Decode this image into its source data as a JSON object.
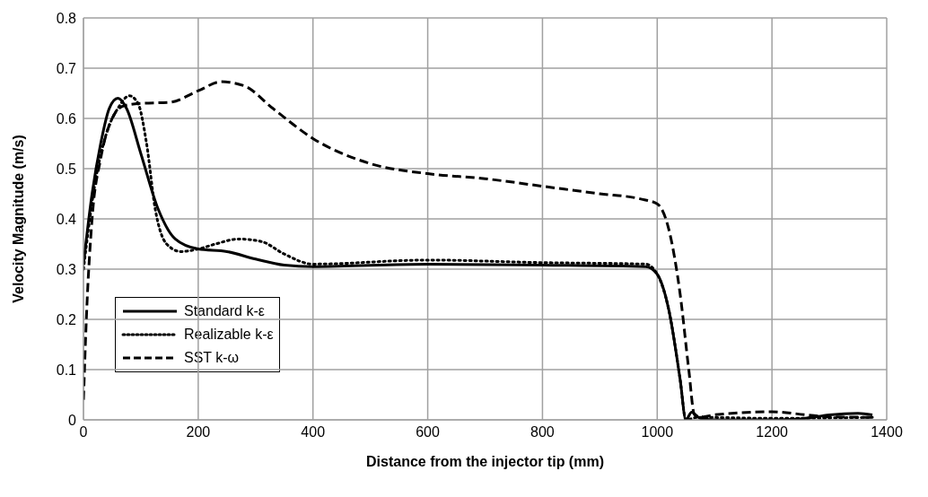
{
  "chart_data": {
    "type": "line",
    "xlabel": "Distance from the injector tip (mm)",
    "ylabel": "Velocity Magnitude (m/s)",
    "xlim": [
      0,
      1400
    ],
    "xticks": [
      0,
      200,
      400,
      600,
      800,
      1000,
      1200,
      1400
    ],
    "ylim": [
      0,
      0.8
    ],
    "yticks": [
      0,
      0.1,
      0.2,
      0.3,
      0.4,
      0.5,
      0.6,
      0.7,
      0.8
    ],
    "grid": true,
    "legend": "bottom left",
    "marker": "none",
    "series": [
      {
        "name": "Standard k-ε",
        "color": "#000000",
        "line_style": "solid",
        "x": [
          0,
          15,
          30,
          45,
          60,
          75,
          100,
          130,
          160,
          200,
          250,
          300,
          350,
          400,
          600,
          800,
          980,
          1000,
          1020,
          1040,
          1050,
          1060,
          1075,
          1100,
          1200,
          1250,
          1300,
          1350,
          1375
        ],
        "values": [
          0.31,
          0.45,
          0.55,
          0.62,
          0.64,
          0.62,
          0.53,
          0.42,
          0.36,
          0.34,
          0.335,
          0.32,
          0.308,
          0.305,
          0.31,
          0.308,
          0.305,
          0.29,
          0.22,
          0.08,
          0,
          0.015,
          0.003,
          0,
          0,
          0.002,
          0.01,
          0.013,
          0.01
        ]
      },
      {
        "name": "Realizable k-ε",
        "color": "#000000",
        "line_style": "dotted",
        "x": [
          0,
          20,
          40,
          60,
          80,
          95,
          110,
          125,
          145,
          170,
          200,
          230,
          270,
          310,
          350,
          400,
          600,
          800,
          980,
          1000,
          1020,
          1040,
          1050,
          1070,
          1200,
          1375
        ],
        "values": [
          0.3,
          0.47,
          0.57,
          0.62,
          0.645,
          0.63,
          0.55,
          0.42,
          0.35,
          0.335,
          0.34,
          0.35,
          0.36,
          0.355,
          0.33,
          0.31,
          0.318,
          0.313,
          0.31,
          0.29,
          0.22,
          0.08,
          0,
          0.005,
          0.003,
          0.005
        ]
      },
      {
        "name": "SST k-ω",
        "color": "#000000",
        "line_style": "dashed",
        "x": [
          0,
          5,
          15,
          30,
          50,
          70,
          100,
          150,
          200,
          240,
          280,
          330,
          400,
          500,
          600,
          700,
          800,
          900,
          970,
          1000,
          1020,
          1040,
          1055,
          1065,
          1080,
          1100,
          1200,
          1260,
          1300,
          1375
        ],
        "values": [
          0.04,
          0.2,
          0.4,
          0.52,
          0.6,
          0.625,
          0.63,
          0.632,
          0.655,
          0.673,
          0.665,
          0.62,
          0.56,
          0.51,
          0.49,
          0.48,
          0.465,
          0.45,
          0.44,
          0.43,
          0.38,
          0.25,
          0.1,
          0.01,
          0.006,
          0.01,
          0.016,
          0.01,
          0.006,
          0.005
        ]
      }
    ]
  }
}
